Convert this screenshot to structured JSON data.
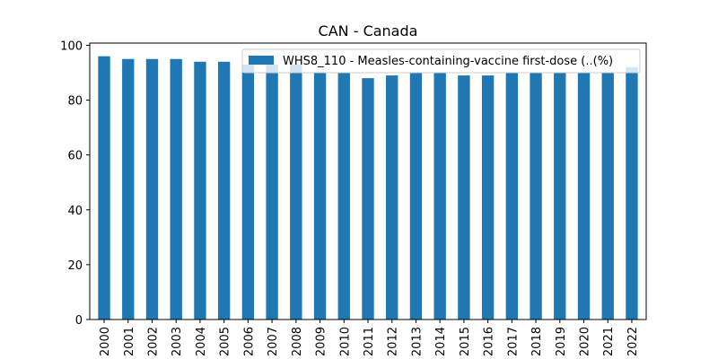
{
  "chart_data": {
    "type": "bar",
    "title": "CAN - Canada",
    "xlabel": "",
    "ylabel": "",
    "categories": [
      "2000",
      "2001",
      "2002",
      "2003",
      "2004",
      "2005",
      "2006",
      "2007",
      "2008",
      "2009",
      "2010",
      "2011",
      "2012",
      "2013",
      "2014",
      "2015",
      "2016",
      "2017",
      "2018",
      "2019",
      "2020",
      "2021",
      "2022"
    ],
    "series": [
      {
        "name": "WHS8_110 - Measles-containing-vaccine first-dose (..(%)",
        "values": [
          96,
          95,
          95,
          95,
          94,
          94,
          93,
          93,
          93,
          90,
          90,
          88,
          89,
          90,
          90,
          89,
          89,
          90,
          90,
          90,
          90,
          90,
          92
        ],
        "color": "#1f77b4"
      }
    ],
    "yticks": [
      0,
      20,
      40,
      60,
      80,
      100
    ],
    "ylim": [
      0,
      100.8
    ],
    "grid": false,
    "legend_position": "top-right"
  }
}
